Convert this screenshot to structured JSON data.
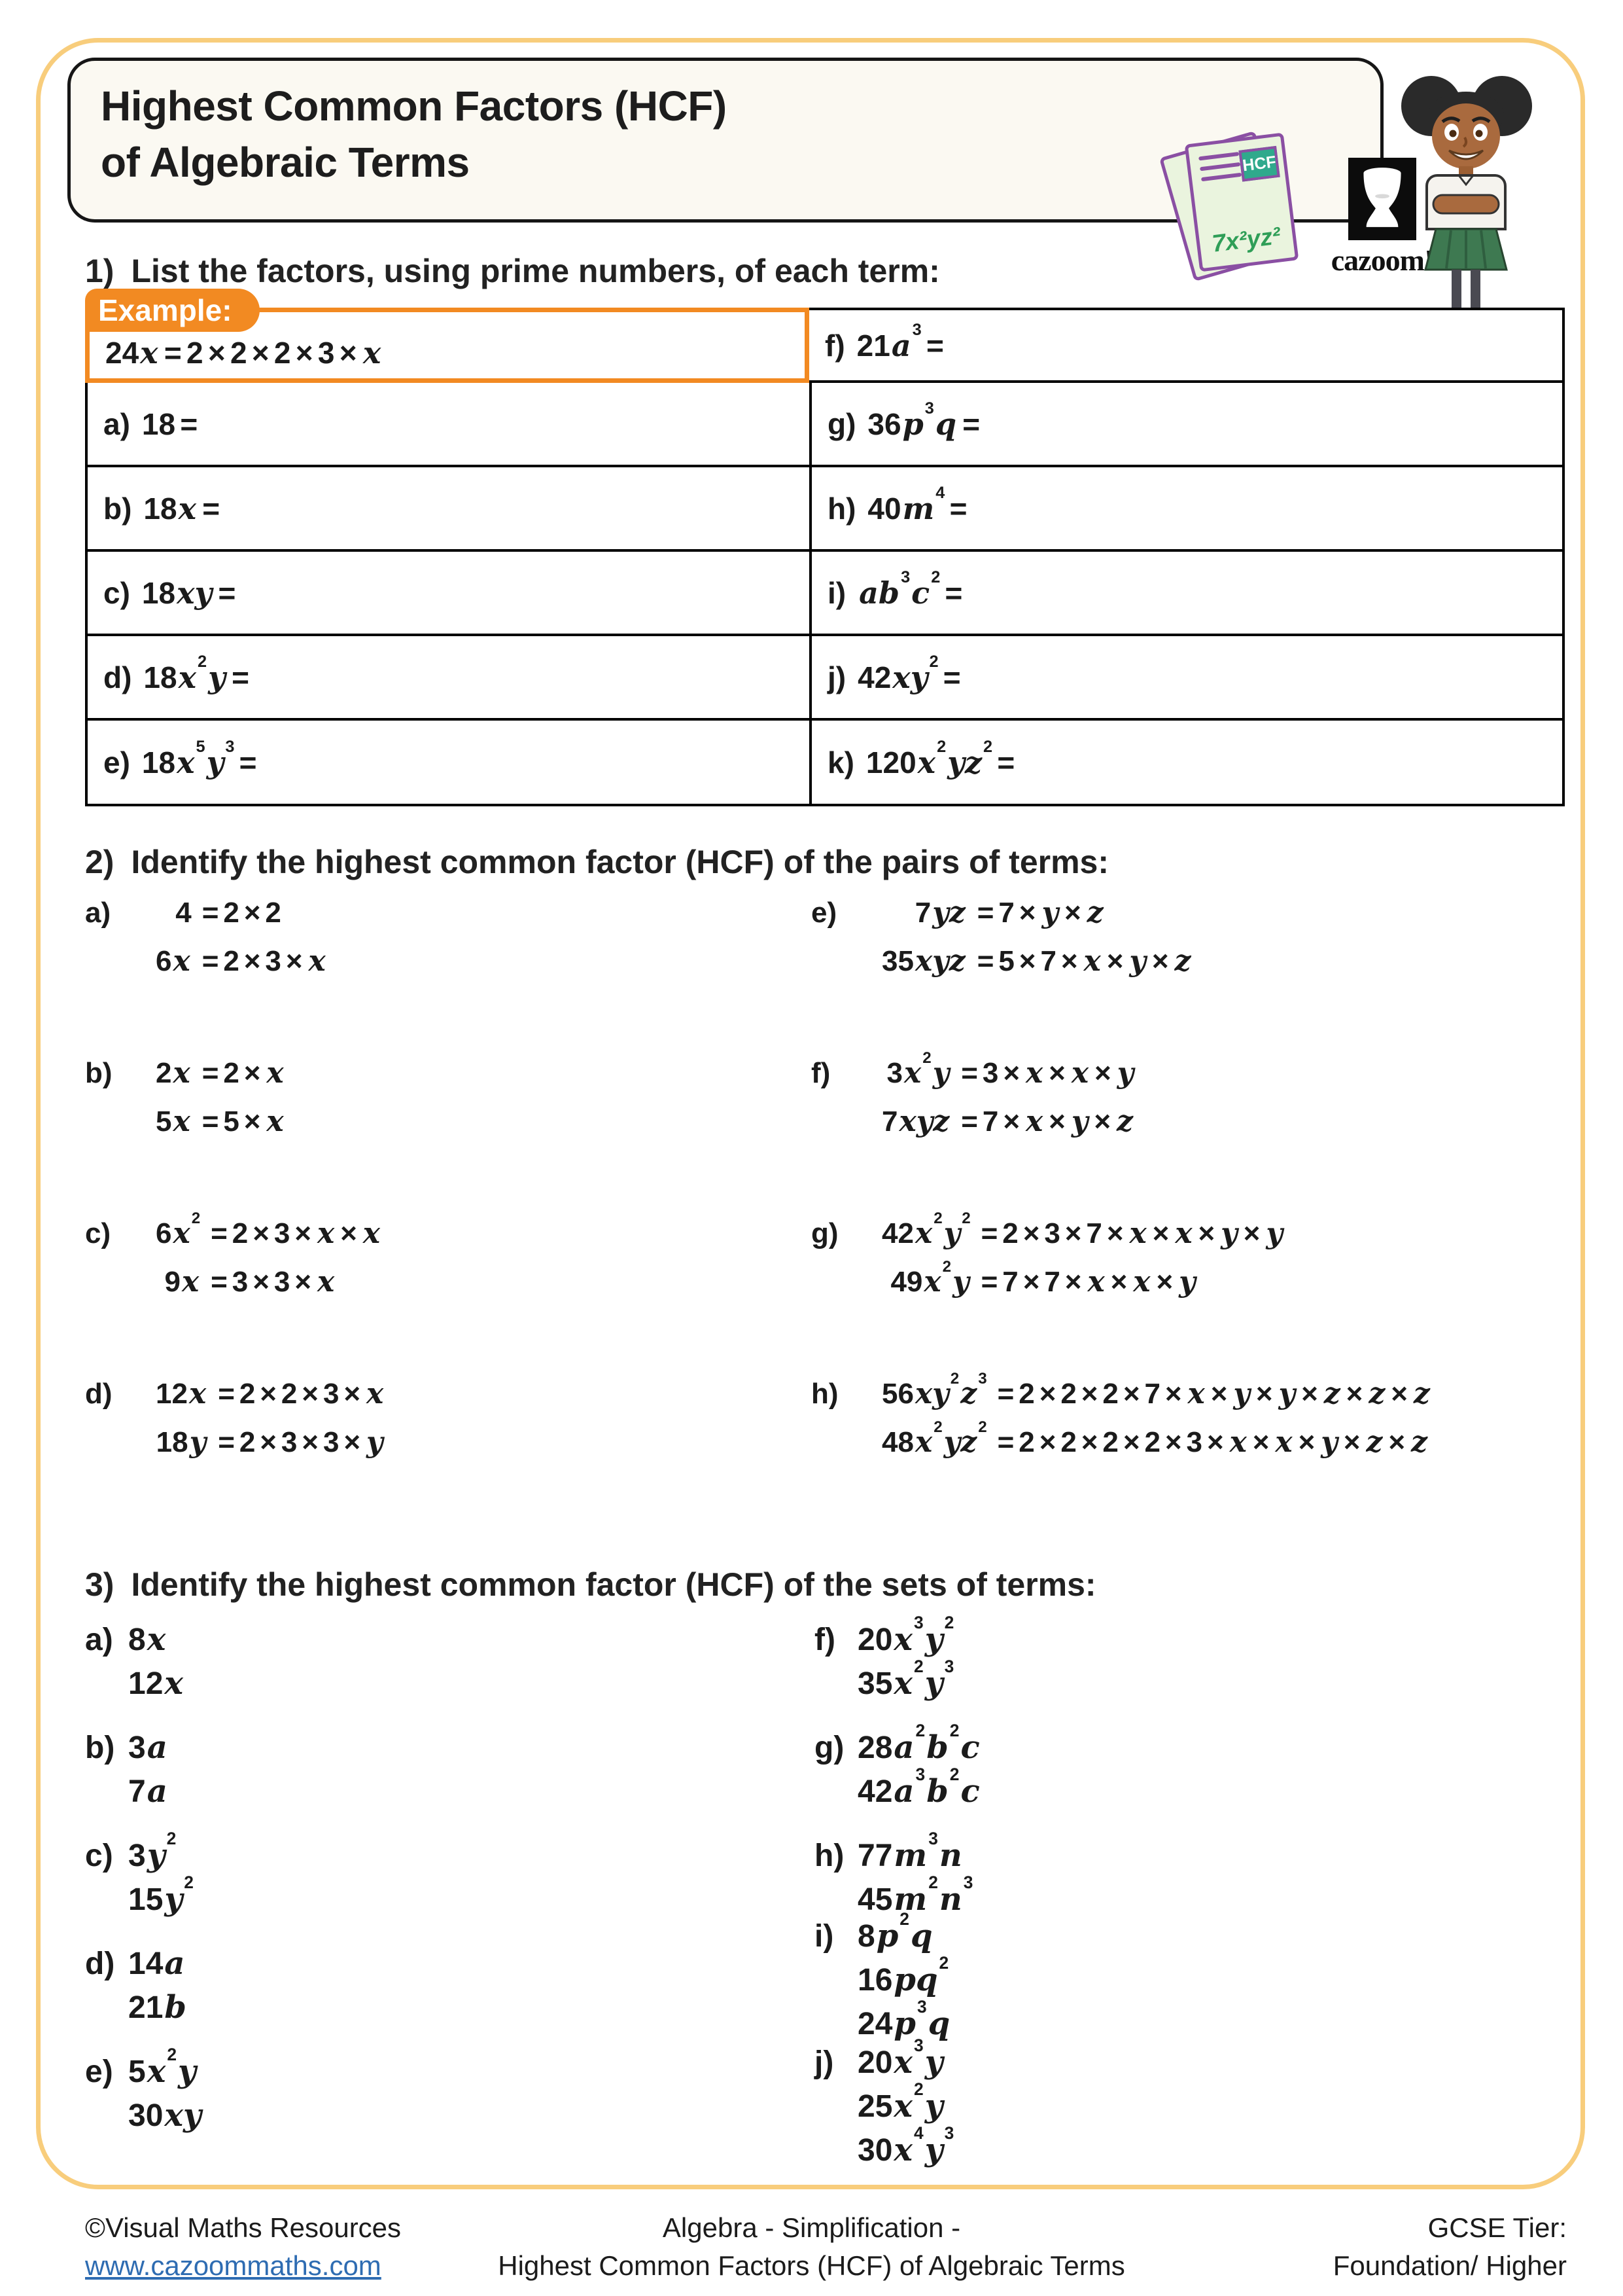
{
  "colors": {
    "accent_orange": "#F28A22",
    "border_yellow": "#F8CD7C",
    "link_blue": "#2E6CB2",
    "icon_purple": "#8A4FA3",
    "icon_green": "#2FA98C",
    "formula_green": "#2F9E57",
    "skirt_green": "#3E7951"
  },
  "header": {
    "title_line1": "Highest Common Factors (HCF)",
    "title_line2": "of Algebraic Terms",
    "doc_icon": {
      "badge": "HCF",
      "formula": "7x²yz²"
    },
    "logo_text": "cazoom!"
  },
  "q1": {
    "number": "1)",
    "prompt": "List the factors, using prime numbers, of each term:",
    "example_label": "Example:",
    "example_expr": "24x = 2 × 2 × 2 × 3 × x",
    "rows_left": [
      {
        "label": "a)",
        "expr": "18 ="
      },
      {
        "label": "b)",
        "expr": "18x ="
      },
      {
        "label": "c)",
        "expr": "18xy ="
      },
      {
        "label": "d)",
        "expr": "18x^2y ="
      },
      {
        "label": "e)",
        "expr": "18x^5y^3 ="
      }
    ],
    "rows_right": [
      {
        "label": "f)",
        "expr": "21a^3 ="
      },
      {
        "label": "g)",
        "expr": "36p^3q ="
      },
      {
        "label": "h)",
        "expr": "40m^4 ="
      },
      {
        "label": "i)",
        "expr": "ab^3c^2 ="
      },
      {
        "label": "j)",
        "expr": "42xy^2 ="
      },
      {
        "label": "k)",
        "expr": "120x^2yz^2 ="
      }
    ]
  },
  "q2": {
    "number": "2)",
    "prompt": "Identify the highest common factor (HCF) of the pairs of terms:",
    "items": [
      {
        "label": "a)",
        "lines": [
          {
            "lhs": "4",
            "rhs": "= 2 × 2"
          },
          {
            "lhs": "6x",
            "rhs": "= 2 × 3 × x"
          }
        ]
      },
      {
        "label": "b)",
        "lines": [
          {
            "lhs": "2x",
            "rhs": "= 2 × x"
          },
          {
            "lhs": "5x",
            "rhs": "= 5 × x"
          }
        ]
      },
      {
        "label": "c)",
        "lines": [
          {
            "lhs": "6x^2",
            "rhs": "= 2 × 3 × x × x"
          },
          {
            "lhs": "9x",
            "rhs": "= 3 × 3 × x"
          }
        ]
      },
      {
        "label": "d)",
        "lines": [
          {
            "lhs": "12x",
            "rhs": "= 2 × 2 × 3 × x"
          },
          {
            "lhs": "18y",
            "rhs": "= 2 × 3 × 3 × y"
          }
        ]
      },
      {
        "label": "e)",
        "lines": [
          {
            "lhs": "7yz",
            "rhs": "= 7 × y × z"
          },
          {
            "lhs": "35xyz",
            "rhs": "= 5 × 7 × x × y × z"
          }
        ]
      },
      {
        "label": "f)",
        "lines": [
          {
            "lhs": "3x^2y",
            "rhs": "= 3 × x × x × y"
          },
          {
            "lhs": "7xyz",
            "rhs": "= 7 × x × y × z"
          }
        ]
      },
      {
        "label": "g)",
        "lines": [
          {
            "lhs": "42x^2y^2",
            "rhs": "= 2 × 3 × 7 × x × x × y × y"
          },
          {
            "lhs": "49x^2y",
            "rhs": "= 7 × 7 × x × x × y"
          }
        ]
      },
      {
        "label": "h)",
        "lines": [
          {
            "lhs": "56xy^2z^3",
            "rhs": "= 2 × 2 × 2 × 7 × x × y × y × z × z × z"
          },
          {
            "lhs": "48x^2yz^2",
            "rhs": "= 2 × 2 × 2 × 2 × 3 × x × x × y × z × z"
          }
        ]
      }
    ]
  },
  "q3": {
    "number": "3)",
    "prompt": "Identify the highest common factor (HCF) of the sets of terms:",
    "items": [
      {
        "label": "a)",
        "terms": [
          "8x",
          "12x"
        ]
      },
      {
        "label": "b)",
        "terms": [
          "3a",
          "7a"
        ]
      },
      {
        "label": "c)",
        "terms": [
          "3y^2",
          "15y^2"
        ]
      },
      {
        "label": "d)",
        "terms": [
          "14a",
          "21b"
        ]
      },
      {
        "label": "e)",
        "terms": [
          "5x^2y",
          "30xy"
        ]
      },
      {
        "label": "f)",
        "terms": [
          "20x^3y^2",
          "35x^2y^3"
        ]
      },
      {
        "label": "g)",
        "terms": [
          "28a^2b^2c",
          "42a^3b^2c"
        ]
      },
      {
        "label": "h)",
        "terms": [
          "77m^3n",
          "45m^2n^3"
        ]
      },
      {
        "label": "i)",
        "terms": [
          "8p^2q",
          "16pq^2",
          "24p^3q"
        ]
      },
      {
        "label": "j)",
        "terms": [
          "20x^3y",
          "25x^2y",
          "30x^4y^3"
        ]
      }
    ]
  },
  "footer": {
    "copyright": "©Visual Maths Resources",
    "url": "www.cazoommaths.com",
    "center_line1": "Algebra - Simplification -",
    "center_line2": "Highest Common Factors (HCF) of Algebraic Terms",
    "tier_label": "GCSE Tier:",
    "tier_value": "Foundation/ Higher"
  }
}
